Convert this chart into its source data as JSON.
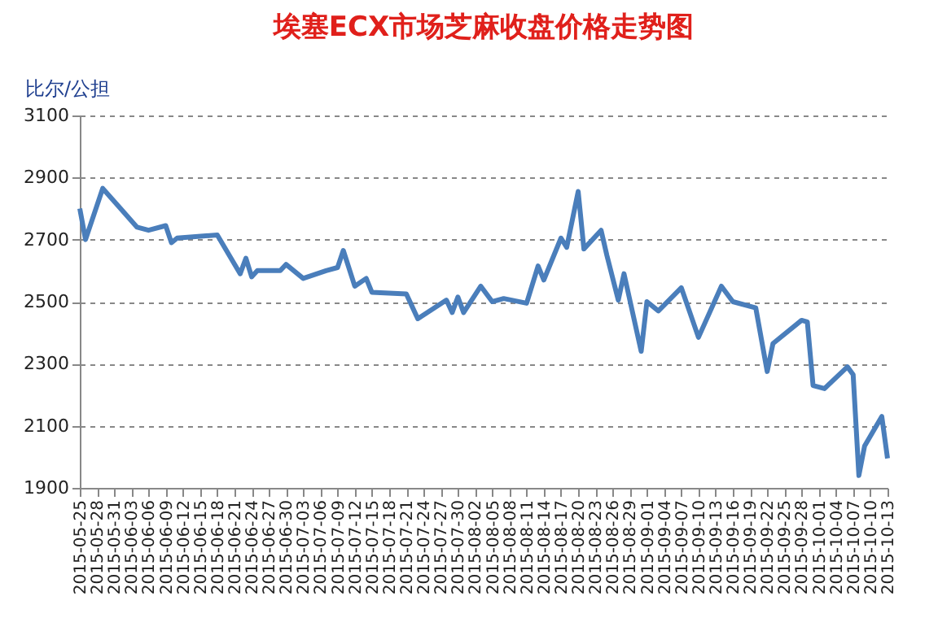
{
  "chart_data": {
    "type": "line",
    "title": "埃塞ECX市场芝麻收盘价格走势图",
    "ylabel": "比尔/公担",
    "x": [
      "2015-05-25",
      "2015-05-26",
      "2015-05-29",
      "2015-06-04",
      "2015-06-06",
      "2015-06-09",
      "2015-06-10",
      "2015-06-11",
      "2015-06-18",
      "2015-06-22",
      "2015-06-23",
      "2015-06-24",
      "2015-06-25",
      "2015-06-29",
      "2015-06-30",
      "2015-07-03",
      "2015-07-07",
      "2015-07-09",
      "2015-07-10",
      "2015-07-12",
      "2015-07-14",
      "2015-07-15",
      "2015-07-21",
      "2015-07-23",
      "2015-07-28",
      "2015-07-29",
      "2015-07-30",
      "2015-07-31",
      "2015-08-03",
      "2015-08-05",
      "2015-08-07",
      "2015-08-11",
      "2015-08-13",
      "2015-08-14",
      "2015-08-17",
      "2015-08-18",
      "2015-08-20",
      "2015-08-21",
      "2015-08-24",
      "2015-08-25",
      "2015-08-27",
      "2015-08-28",
      "2015-08-31",
      "2015-09-01",
      "2015-09-03",
      "2015-09-07",
      "2015-09-10",
      "2015-09-14",
      "2015-09-16",
      "2015-09-20",
      "2015-09-22",
      "2015-09-23",
      "2015-09-28",
      "2015-09-29",
      "2015-09-30",
      "2015-10-02",
      "2015-10-06",
      "2015-10-07",
      "2015-10-08",
      "2015-10-09",
      "2015-10-12",
      "2015-10-13"
    ],
    "series": [
      {
        "color": "#4a7ebb",
        "values": [
          2800,
          2700,
          2865,
          2740,
          2730,
          2745,
          2690,
          2705,
          2715,
          2590,
          2640,
          2580,
          2600,
          2600,
          2620,
          2575,
          2600,
          2610,
          2665,
          2550,
          2575,
          2530,
          2525,
          2445,
          2505,
          2465,
          2515,
          2465,
          2550,
          2500,
          2510,
          2495,
          2615,
          2570,
          2705,
          2675,
          2855,
          2670,
          2730,
          2650,
          2505,
          2590,
          2340,
          2500,
          2470,
          2545,
          2385,
          2550,
          2500,
          2480,
          2275,
          2365,
          2440,
          2435,
          2230,
          2220,
          2290,
          2265,
          1940,
          2035,
          2130,
          1995
        ]
      }
    ],
    "xlim": [
      "2015-05-25",
      "2015-10-13"
    ],
    "xticks": [
      "2015-05-25",
      "2015-05-28",
      "2015-05-31",
      "2015-06-03",
      "2015-06-06",
      "2015-06-09",
      "2015-06-12",
      "2015-06-15",
      "2015-06-18",
      "2015-06-21",
      "2015-06-24",
      "2015-06-27",
      "2015-06-30",
      "2015-07-03",
      "2015-07-06",
      "2015-07-09",
      "2015-07-12",
      "2015-07-15",
      "2015-07-18",
      "2015-07-21",
      "2015-07-24",
      "2015-07-27",
      "2015-07-30",
      "2015-08-02",
      "2015-08-05",
      "2015-08-08",
      "2015-08-11",
      "2015-08-14",
      "2015-08-17",
      "2015-08-20",
      "2015-08-23",
      "2015-08-26",
      "2015-08-29",
      "2015-09-01",
      "2015-09-04",
      "2015-09-07",
      "2015-09-10",
      "2015-09-13",
      "2015-09-16",
      "2015-09-19",
      "2015-09-22",
      "2015-09-25",
      "2015-09-28",
      "2015-10-01",
      "2015-10-04",
      "2015-10-07",
      "2015-10-10",
      "2015-10-13"
    ],
    "ylim": [
      1900,
      3100
    ],
    "yticks": [
      1900,
      2100,
      2300,
      2500,
      2700,
      2900,
      3100
    ],
    "grid": "y",
    "marker": "none",
    "line_style": "solid"
  }
}
